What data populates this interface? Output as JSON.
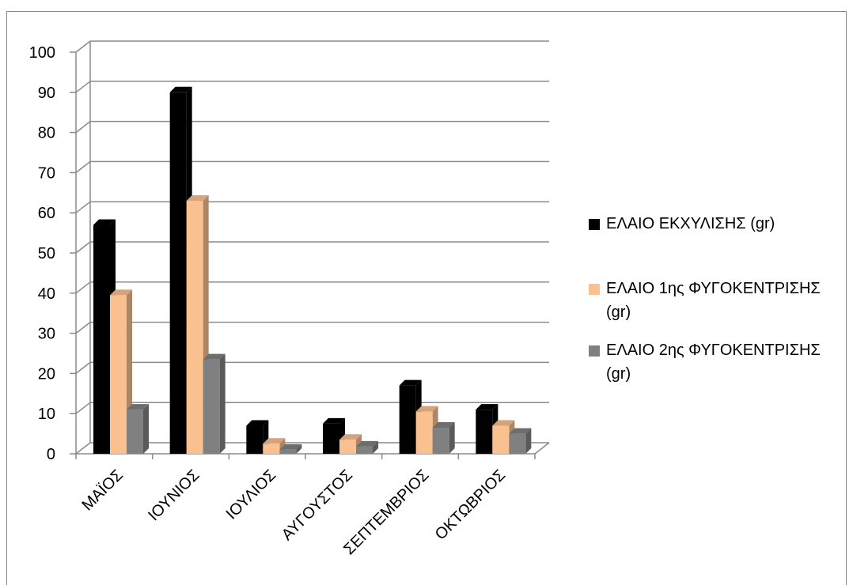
{
  "chart_data": {
    "type": "bar",
    "title": "",
    "xlabel": "",
    "ylabel": "",
    "ylim": [
      0,
      100
    ],
    "yticks": [
      0,
      10,
      20,
      30,
      40,
      50,
      60,
      70,
      80,
      90,
      100
    ],
    "grid": true,
    "legend_position": "right",
    "categories": [
      "ΜΑΪΟΣ",
      "ΙΟΥΝΙΟΣ",
      "ΙΟΥΛΙΟΣ",
      "ΑΥΓΟΥΣΤΟΣ",
      "ΣΕΠΤΕΜΒΡΙΟΣ",
      "ΟΚΤΩΒΡΙΟΣ"
    ],
    "series": [
      {
        "name": "ΕΛΑΙΟ ΕΚΧΥΛΙΣΗΣ (gr)",
        "color": "#000000",
        "values": [
          57,
          90,
          7,
          7.5,
          17,
          11
        ]
      },
      {
        "name": "ΕΛΑΙΟ 1ης ΦΥΓΟΚΕΝΤΡΙΣΗΣ (gr)",
        "color": "#fac090",
        "values": [
          39.5,
          63,
          2.5,
          3.5,
          10.5,
          7
        ]
      },
      {
        "name": "ΕΛΑΙΟ 2ης ΦΥΓΟΚΕΝΤΡΙΣΗΣ (gr)",
        "color": "#808080",
        "values": [
          11,
          23.5,
          1,
          1.8,
          6.5,
          5
        ]
      }
    ]
  },
  "legend": {
    "items": [
      {
        "line1": "ΕΛΑΙΟ ΕΚΧΥΛΙΣΗΣ (gr)",
        "line2": ""
      },
      {
        "line1": "ΕΛΑΙΟ 1ης ΦΥΓΟΚΕΝΤΡΙΣΗΣ",
        "line2": "(gr)"
      },
      {
        "line1": "ΕΛΑΙΟ 2ης ΦΥΓΟΚΕΝΤΡΙΣΗΣ",
        "line2": "(gr)"
      }
    ]
  }
}
